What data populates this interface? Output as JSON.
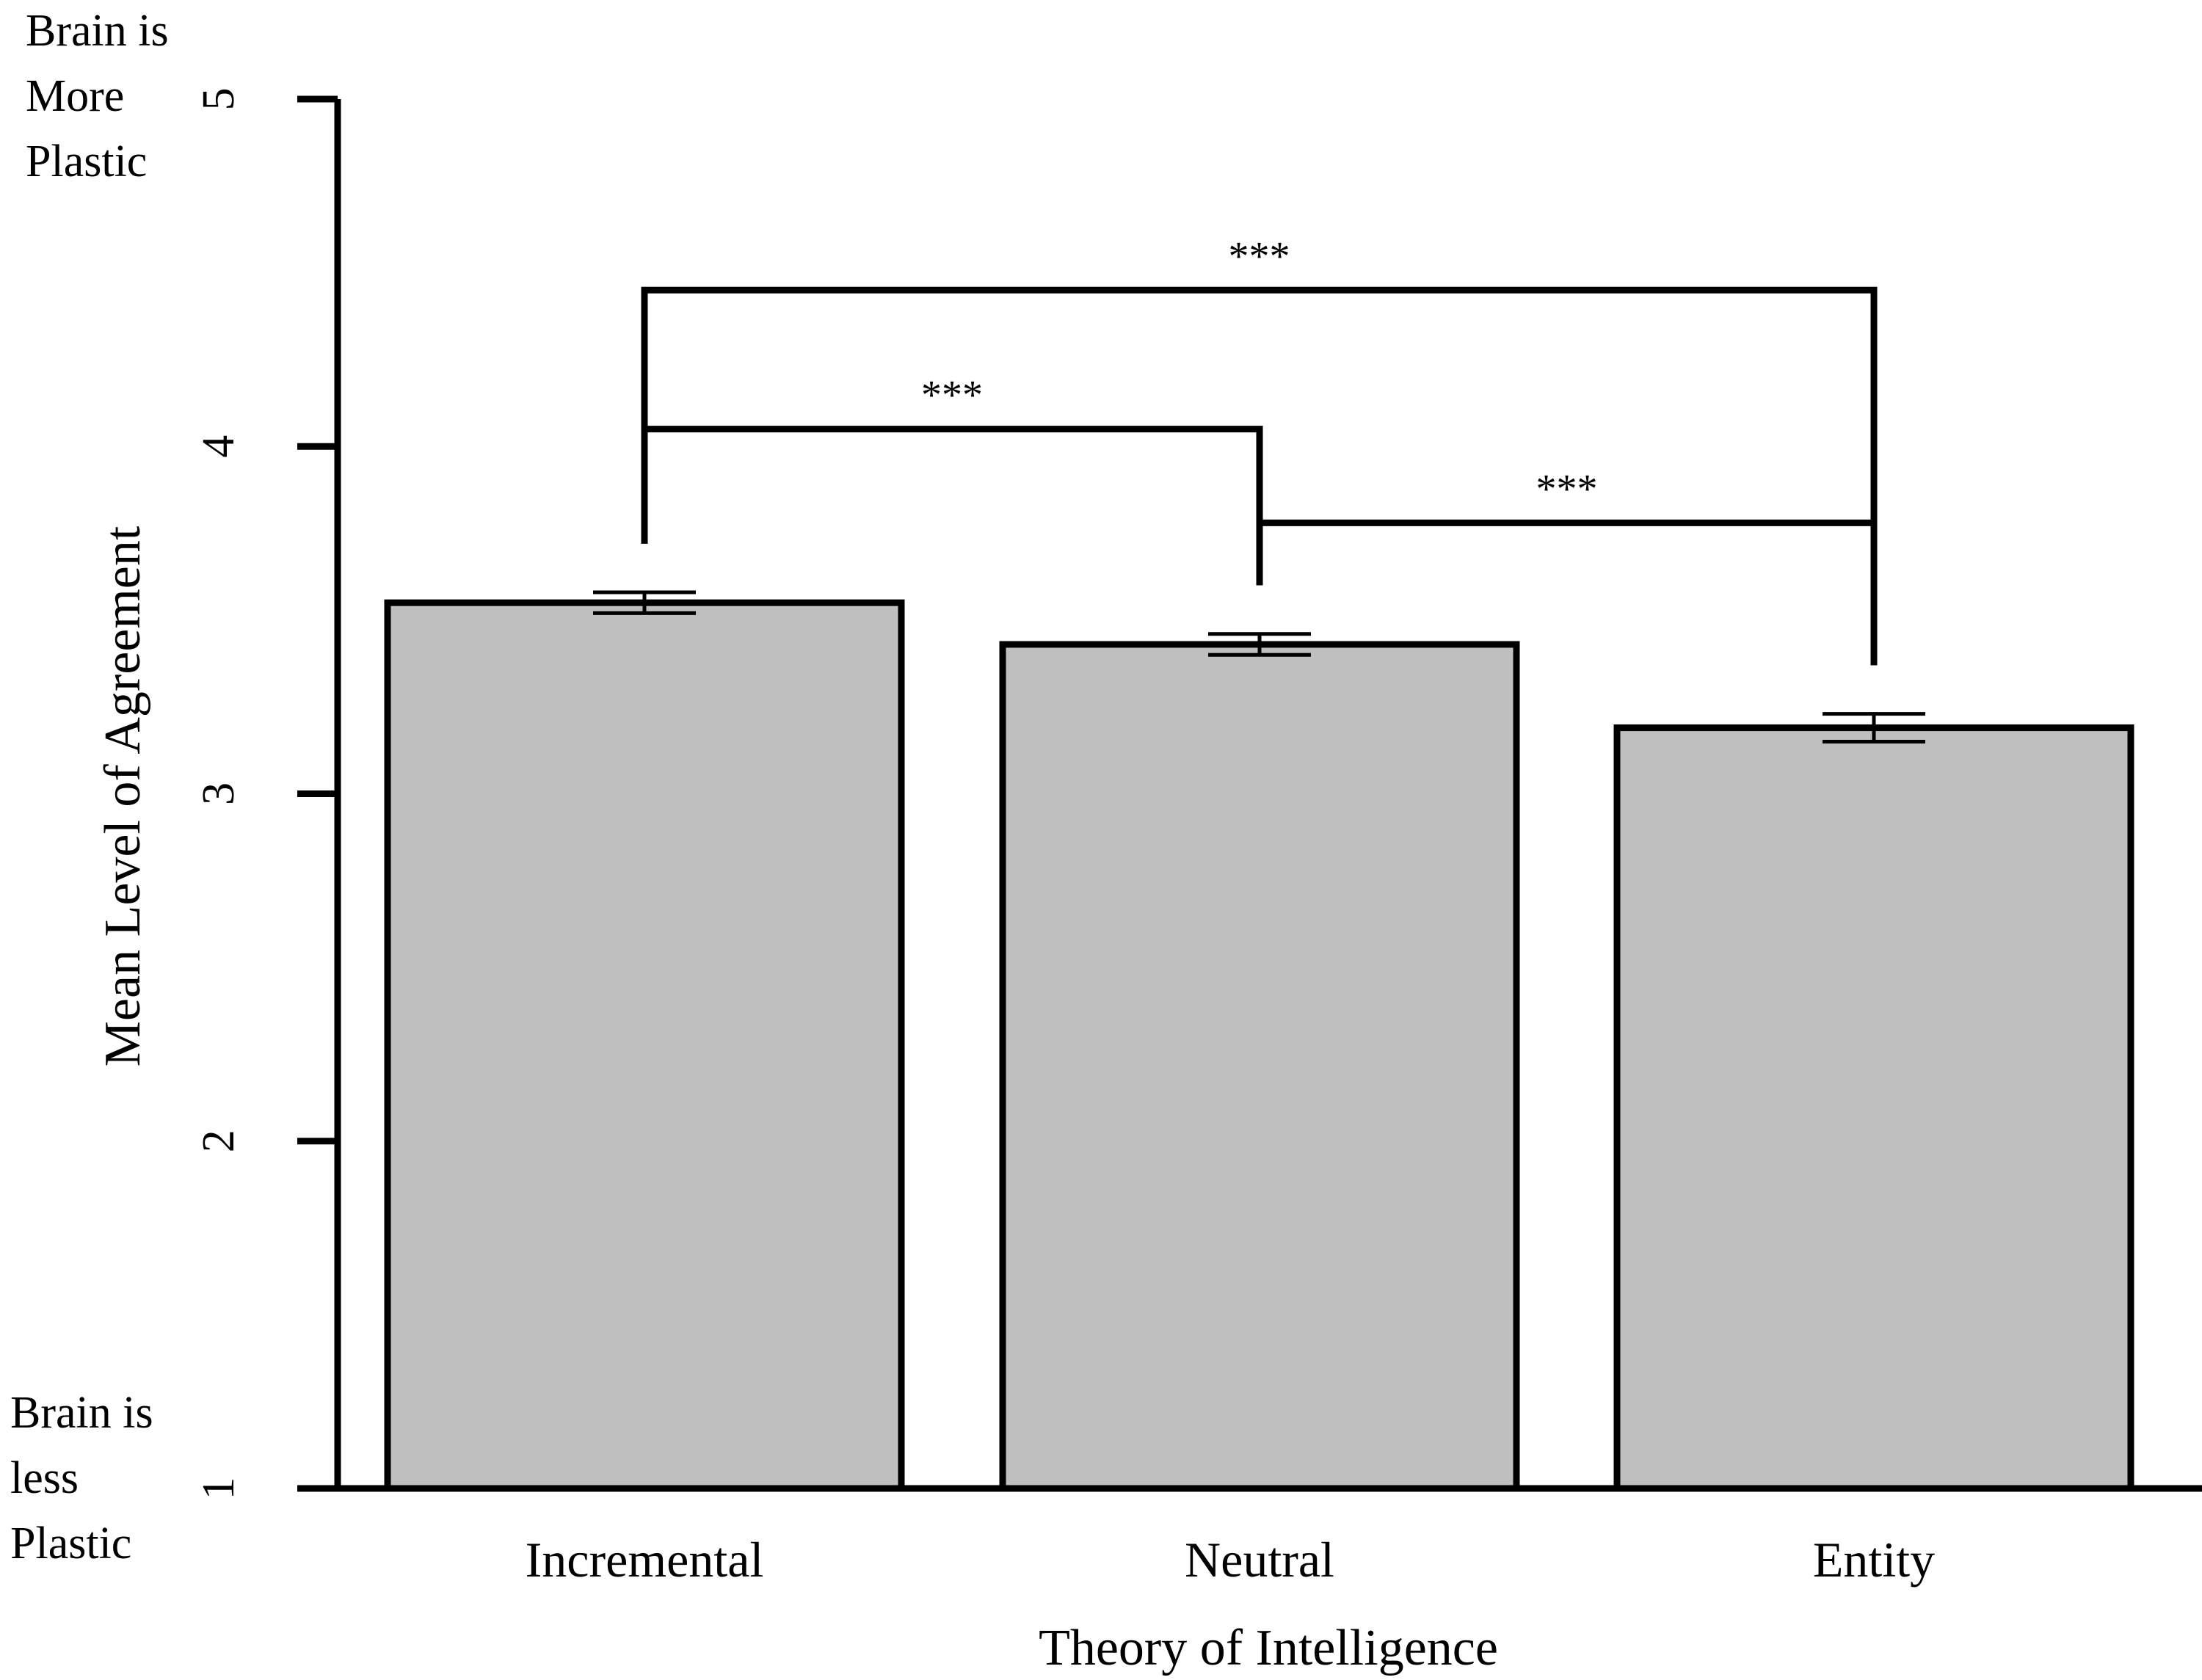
{
  "chart_data": {
    "type": "bar",
    "title": "",
    "xlabel": "Theory of Intelligence",
    "ylabel": "Mean Level of Agreement",
    "ylim": [
      1,
      5
    ],
    "yticks": [
      "1",
      "2",
      "3",
      "4",
      "5"
    ],
    "categories": [
      "Incremental",
      "Neutral",
      "Entity"
    ],
    "values": [
      3.55,
      3.43,
      3.19
    ],
    "errors": [
      0.03,
      0.03,
      0.04
    ],
    "grid": false,
    "legend": "none",
    "annotations": {
      "top_label": [
        "Brain is",
        "More",
        "Plastic"
      ],
      "bottom_label": [
        "Brain is",
        "less",
        "Plastic"
      ]
    },
    "significance": [
      {
        "from": 0,
        "to": 1,
        "label": "***",
        "level": 4.05
      },
      {
        "from": 1,
        "to": 2,
        "label": "***",
        "level": 3.78
      },
      {
        "from": 0,
        "to": 2,
        "label": "***",
        "level": 4.45
      }
    ],
    "colors": {
      "bar_fill": "#bfbfbf",
      "stroke": "#000000"
    }
  }
}
